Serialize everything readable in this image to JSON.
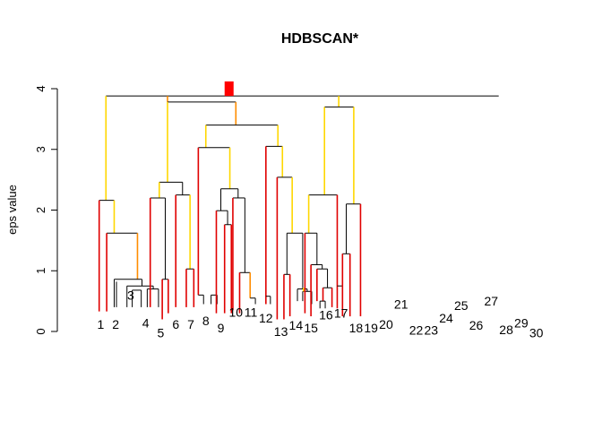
{
  "chart_data": {
    "type": "dendrogram",
    "title": "HDBSCAN*",
    "ylabel": "eps value",
    "ylim": [
      0,
      4.15
    ],
    "yticks": [
      0,
      1,
      2,
      3,
      4
    ],
    "ytick_labels": [
      "0",
      "1",
      "2",
      "3",
      "4"
    ],
    "colors": {
      "tree": "#000000",
      "red": "#e00000",
      "orange": "#ff8c00",
      "yellow": "#ffd700",
      "bright_red": "#ff0000"
    },
    "leaf_labels": [
      {
        "text": "1",
        "x": 1,
        "y_label": 0.12
      },
      {
        "text": "2",
        "x": 2,
        "y_label": 0.12
      },
      {
        "text": "3",
        "x": 3,
        "y_label": 0.6
      },
      {
        "text": "4",
        "x": 4,
        "y_label": 0.14
      },
      {
        "text": "5",
        "x": 5,
        "y_label": -0.02
      },
      {
        "text": "6",
        "x": 6,
        "y_label": 0.12
      },
      {
        "text": "7",
        "x": 7,
        "y_label": 0.12
      },
      {
        "text": "8",
        "x": 8,
        "y_label": 0.18
      },
      {
        "text": "9",
        "x": 9,
        "y_label": 0.06
      },
      {
        "text": "10",
        "x": 10,
        "y_label": 0.32
      },
      {
        "text": "11",
        "x": 11,
        "y_label": 0.32
      },
      {
        "text": "12",
        "x": 12,
        "y_label": 0.22
      },
      {
        "text": "13",
        "x": 13,
        "y_label": 0.0
      },
      {
        "text": "14",
        "x": 14,
        "y_label": 0.1
      },
      {
        "text": "15",
        "x": 15,
        "y_label": 0.06
      },
      {
        "text": "16",
        "x": 16,
        "y_label": 0.27
      },
      {
        "text": "17",
        "x": 17,
        "y_label": 0.3
      },
      {
        "text": "18",
        "x": 18,
        "y_label": 0.06
      },
      {
        "text": "19",
        "x": 19,
        "y_label": 0.06
      },
      {
        "text": "20",
        "x": 20,
        "y_label": 0.12
      },
      {
        "text": "21",
        "x": 21,
        "y_label": 0.45
      },
      {
        "text": "22",
        "x": 22,
        "y_label": 0.02
      },
      {
        "text": "23",
        "x": 23,
        "y_label": 0.02
      },
      {
        "text": "24",
        "x": 24,
        "y_label": 0.22
      },
      {
        "text": "25",
        "x": 25,
        "y_label": 0.43
      },
      {
        "text": "26",
        "x": 26,
        "y_label": 0.1
      },
      {
        "text": "27",
        "x": 27,
        "y_label": 0.5
      },
      {
        "text": "28",
        "x": 28,
        "y_label": 0.03
      },
      {
        "text": "29",
        "x": 29,
        "y_label": 0.14
      },
      {
        "text": "30",
        "x": 30,
        "y_label": -0.02
      }
    ],
    "segments": [
      {
        "x1": 1.35,
        "y1": 3.88,
        "x2": 27.5,
        "y2": 3.88,
        "color": "tree"
      },
      {
        "x1": 1.35,
        "y1": 3.88,
        "x2": 1.35,
        "y2": 2.16,
        "color": "yellow"
      },
      {
        "x1": 0.9,
        "y1": 2.16,
        "x2": 1.9,
        "y2": 2.16,
        "color": "tree"
      },
      {
        "x1": 0.9,
        "y1": 2.16,
        "x2": 0.9,
        "y2": 0.33,
        "color": "red"
      },
      {
        "x1": 1.9,
        "y1": 2.16,
        "x2": 1.9,
        "y2": 1.62,
        "color": "yellow"
      },
      {
        "x1": 1.4,
        "y1": 1.62,
        "x2": 3.45,
        "y2": 1.62,
        "color": "tree"
      },
      {
        "x1": 1.4,
        "y1": 1.62,
        "x2": 1.4,
        "y2": 0.33,
        "color": "red"
      },
      {
        "x1": 3.45,
        "y1": 1.62,
        "x2": 3.45,
        "y2": 0.86,
        "color": "orange"
      },
      {
        "x1": 1.9,
        "y1": 0.86,
        "x2": 3.75,
        "y2": 0.86,
        "color": "tree"
      },
      {
        "x1": 1.9,
        "y1": 0.86,
        "x2": 1.9,
        "y2": 0.4,
        "color": "tree"
      },
      {
        "x1": 2.05,
        "y1": 0.82,
        "x2": 2.05,
        "y2": 0.4,
        "color": "tree"
      },
      {
        "x1": 3.75,
        "y1": 0.86,
        "x2": 3.75,
        "y2": 0.75,
        "color": "tree"
      },
      {
        "x1": 2.75,
        "y1": 0.75,
        "x2": 4.5,
        "y2": 0.75,
        "color": "tree"
      },
      {
        "x1": 2.75,
        "y1": 0.75,
        "x2": 2.75,
        "y2": 0.4,
        "color": "tree"
      },
      {
        "x1": 3.1,
        "y1": 0.68,
        "x2": 3.7,
        "y2": 0.68,
        "color": "tree"
      },
      {
        "x1": 3.1,
        "y1": 0.68,
        "x2": 3.1,
        "y2": 0.4,
        "color": "tree"
      },
      {
        "x1": 3.7,
        "y1": 0.68,
        "x2": 3.7,
        "y2": 0.4,
        "color": "tree"
      },
      {
        "x1": 4.5,
        "y1": 0.75,
        "x2": 4.5,
        "y2": 0.7,
        "color": "tree"
      },
      {
        "x1": 4.1,
        "y1": 0.7,
        "x2": 4.85,
        "y2": 0.7,
        "color": "tree"
      },
      {
        "x1": 4.1,
        "y1": 0.7,
        "x2": 4.1,
        "y2": 0.4,
        "color": "tree"
      },
      {
        "x1": 4.85,
        "y1": 0.7,
        "x2": 4.85,
        "y2": 0.4,
        "color": "tree"
      },
      {
        "x1": 5.45,
        "y1": 3.88,
        "x2": 5.45,
        "y2": 3.78,
        "color": "orange"
      },
      {
        "x1": 5.45,
        "y1": 3.78,
        "x2": 10.0,
        "y2": 3.78,
        "color": "tree"
      },
      {
        "x1": 10.0,
        "y1": 3.78,
        "x2": 10.0,
        "y2": 3.4,
        "color": "orange"
      },
      {
        "x1": 5.45,
        "y1": 3.78,
        "x2": 5.45,
        "y2": 2.46,
        "color": "yellow"
      },
      {
        "x1": 4.9,
        "y1": 2.46,
        "x2": 6.45,
        "y2": 2.46,
        "color": "tree"
      },
      {
        "x1": 4.9,
        "y1": 2.46,
        "x2": 4.9,
        "y2": 2.2,
        "color": "yellow"
      },
      {
        "x1": 4.3,
        "y1": 2.2,
        "x2": 5.3,
        "y2": 2.2,
        "color": "tree"
      },
      {
        "x1": 4.3,
        "y1": 2.2,
        "x2": 4.3,
        "y2": 0.4,
        "color": "red"
      },
      {
        "x1": 5.3,
        "y1": 2.2,
        "x2": 5.3,
        "y2": 0.86,
        "color": "tree"
      },
      {
        "x1": 5.1,
        "y1": 0.86,
        "x2": 5.5,
        "y2": 0.86,
        "color": "tree"
      },
      {
        "x1": 5.1,
        "y1": 0.86,
        "x2": 5.1,
        "y2": 0.2,
        "color": "red"
      },
      {
        "x1": 5.5,
        "y1": 0.86,
        "x2": 5.5,
        "y2": 0.3,
        "color": "red"
      },
      {
        "x1": 6.45,
        "y1": 2.46,
        "x2": 6.45,
        "y2": 2.25,
        "color": "tree"
      },
      {
        "x1": 6.0,
        "y1": 2.25,
        "x2": 6.95,
        "y2": 2.25,
        "color": "tree"
      },
      {
        "x1": 6.0,
        "y1": 2.25,
        "x2": 6.0,
        "y2": 0.4,
        "color": "red"
      },
      {
        "x1": 6.95,
        "y1": 2.25,
        "x2": 6.95,
        "y2": 1.03,
        "color": "yellow"
      },
      {
        "x1": 6.7,
        "y1": 1.03,
        "x2": 7.2,
        "y2": 1.03,
        "color": "tree"
      },
      {
        "x1": 6.7,
        "y1": 1.03,
        "x2": 6.7,
        "y2": 0.4,
        "color": "red"
      },
      {
        "x1": 7.2,
        "y1": 1.03,
        "x2": 7.2,
        "y2": 0.4,
        "color": "red"
      },
      {
        "x1": 8.0,
        "y1": 3.4,
        "x2": 12.8,
        "y2": 3.4,
        "color": "tree"
      },
      {
        "x1": 8.0,
        "y1": 3.4,
        "x2": 8.0,
        "y2": 3.03,
        "color": "yellow"
      },
      {
        "x1": 7.5,
        "y1": 3.03,
        "x2": 9.6,
        "y2": 3.03,
        "color": "tree"
      },
      {
        "x1": 7.5,
        "y1": 3.03,
        "x2": 7.5,
        "y2": 0.6,
        "color": "red"
      },
      {
        "x1": 7.5,
        "y1": 0.6,
        "x2": 7.85,
        "y2": 0.6,
        "color": "tree"
      },
      {
        "x1": 7.85,
        "y1": 0.6,
        "x2": 7.85,
        "y2": 0.45,
        "color": "tree"
      },
      {
        "x1": 8.35,
        "y1": 0.6,
        "x2": 8.75,
        "y2": 0.6,
        "color": "tree"
      },
      {
        "x1": 8.35,
        "y1": 0.6,
        "x2": 8.35,
        "y2": 0.45,
        "color": "tree"
      },
      {
        "x1": 8.75,
        "y1": 0.6,
        "x2": 8.75,
        "y2": 0.45,
        "color": "tree"
      },
      {
        "x1": 9.6,
        "y1": 3.03,
        "x2": 9.6,
        "y2": 2.35,
        "color": "yellow"
      },
      {
        "x1": 9.0,
        "y1": 2.35,
        "x2": 10.15,
        "y2": 2.35,
        "color": "tree"
      },
      {
        "x1": 9.0,
        "y1": 2.35,
        "x2": 9.0,
        "y2": 1.99,
        "color": "tree"
      },
      {
        "x1": 8.7,
        "y1": 1.99,
        "x2": 9.45,
        "y2": 1.99,
        "color": "tree"
      },
      {
        "x1": 8.7,
        "y1": 1.99,
        "x2": 8.7,
        "y2": 0.3,
        "color": "red"
      },
      {
        "x1": 9.45,
        "y1": 1.99,
        "x2": 9.45,
        "y2": 1.76,
        "color": "tree"
      },
      {
        "x1": 9.25,
        "y1": 1.76,
        "x2": 9.7,
        "y2": 1.76,
        "color": "tree"
      },
      {
        "x1": 9.25,
        "y1": 1.76,
        "x2": 9.25,
        "y2": 0.3,
        "color": "red"
      },
      {
        "x1": 9.7,
        "y1": 1.76,
        "x2": 9.7,
        "y2": 0.3,
        "color": "red"
      },
      {
        "x1": 10.15,
        "y1": 2.35,
        "x2": 10.15,
        "y2": 2.2,
        "color": "tree"
      },
      {
        "x1": 9.8,
        "y1": 2.2,
        "x2": 10.6,
        "y2": 2.2,
        "color": "tree"
      },
      {
        "x1": 9.8,
        "y1": 2.2,
        "x2": 9.8,
        "y2": 0.35,
        "color": "red"
      },
      {
        "x1": 10.6,
        "y1": 2.2,
        "x2": 10.6,
        "y2": 0.97,
        "color": "tree"
      },
      {
        "x1": 10.25,
        "y1": 0.97,
        "x2": 10.95,
        "y2": 0.97,
        "color": "tree"
      },
      {
        "x1": 10.25,
        "y1": 0.97,
        "x2": 10.25,
        "y2": 0.3,
        "color": "red"
      },
      {
        "x1": 10.95,
        "y1": 0.97,
        "x2": 10.95,
        "y2": 0.55,
        "color": "orange"
      },
      {
        "x1": 10.95,
        "y1": 0.55,
        "x2": 11.3,
        "y2": 0.55,
        "color": "tree"
      },
      {
        "x1": 11.3,
        "y1": 0.55,
        "x2": 11.3,
        "y2": 0.45,
        "color": "tree"
      },
      {
        "x1": 12.8,
        "y1": 3.4,
        "x2": 12.8,
        "y2": 3.05,
        "color": "yellow"
      },
      {
        "x1": 12.0,
        "y1": 3.05,
        "x2": 13.1,
        "y2": 3.05,
        "color": "tree"
      },
      {
        "x1": 12.0,
        "y1": 3.05,
        "x2": 12.0,
        "y2": 0.45,
        "color": "red"
      },
      {
        "x1": 12.0,
        "y1": 0.58,
        "x2": 12.3,
        "y2": 0.58,
        "color": "tree"
      },
      {
        "x1": 12.3,
        "y1": 0.58,
        "x2": 12.3,
        "y2": 0.45,
        "color": "tree"
      },
      {
        "x1": 13.1,
        "y1": 3.05,
        "x2": 13.1,
        "y2": 2.54,
        "color": "yellow"
      },
      {
        "x1": 12.75,
        "y1": 2.54,
        "x2": 13.75,
        "y2": 2.54,
        "color": "tree"
      },
      {
        "x1": 12.75,
        "y1": 2.54,
        "x2": 12.75,
        "y2": 0.2,
        "color": "red"
      },
      {
        "x1": 13.75,
        "y1": 2.54,
        "x2": 13.75,
        "y2": 1.62,
        "color": "yellow"
      },
      {
        "x1": 13.4,
        "y1": 1.62,
        "x2": 14.45,
        "y2": 1.62,
        "color": "tree"
      },
      {
        "x1": 13.4,
        "y1": 1.62,
        "x2": 13.4,
        "y2": 0.94,
        "color": "tree"
      },
      {
        "x1": 13.2,
        "y1": 0.94,
        "x2": 13.6,
        "y2": 0.94,
        "color": "tree"
      },
      {
        "x1": 13.2,
        "y1": 0.94,
        "x2": 13.2,
        "y2": 0.2,
        "color": "red"
      },
      {
        "x1": 13.6,
        "y1": 0.94,
        "x2": 13.6,
        "y2": 0.25,
        "color": "red"
      },
      {
        "x1": 14.45,
        "y1": 1.62,
        "x2": 14.45,
        "y2": 0.7,
        "color": "tree"
      },
      {
        "x1": 14.1,
        "y1": 0.7,
        "x2": 14.75,
        "y2": 0.7,
        "color": "tree"
      },
      {
        "x1": 14.1,
        "y1": 0.7,
        "x2": 14.1,
        "y2": 0.5,
        "color": "tree"
      },
      {
        "x1": 14.75,
        "y1": 0.7,
        "x2": 14.75,
        "y2": 0.66,
        "color": "tree"
      },
      {
        "x1": 14.45,
        "y1": 0.66,
        "x2": 15.05,
        "y2": 0.66,
        "color": "tree"
      },
      {
        "x1": 14.45,
        "y1": 0.66,
        "x2": 14.45,
        "y2": 0.5,
        "color": "tree"
      },
      {
        "x1": 15.05,
        "y1": 0.66,
        "x2": 15.05,
        "y2": 0.45,
        "color": "tree"
      },
      {
        "x1": 14.5,
        "y1": 0.72,
        "x2": 14.5,
        "y2": 0.66,
        "color": "yellow"
      },
      {
        "x1": 16.85,
        "y1": 3.88,
        "x2": 16.85,
        "y2": 3.7,
        "color": "yellow"
      },
      {
        "x1": 15.9,
        "y1": 3.7,
        "x2": 17.85,
        "y2": 3.7,
        "color": "tree"
      },
      {
        "x1": 15.9,
        "y1": 3.7,
        "x2": 15.9,
        "y2": 2.25,
        "color": "yellow"
      },
      {
        "x1": 14.85,
        "y1": 2.25,
        "x2": 16.75,
        "y2": 2.25,
        "color": "tree"
      },
      {
        "x1": 14.85,
        "y1": 2.25,
        "x2": 14.85,
        "y2": 1.62,
        "color": "yellow"
      },
      {
        "x1": 14.6,
        "y1": 1.62,
        "x2": 15.4,
        "y2": 1.62,
        "color": "tree"
      },
      {
        "x1": 14.6,
        "y1": 1.62,
        "x2": 14.6,
        "y2": 0.3,
        "color": "red"
      },
      {
        "x1": 15.4,
        "y1": 1.62,
        "x2": 15.4,
        "y2": 1.1,
        "color": "tree"
      },
      {
        "x1": 15.0,
        "y1": 1.1,
        "x2": 15.75,
        "y2": 1.1,
        "color": "tree"
      },
      {
        "x1": 15.0,
        "y1": 1.1,
        "x2": 15.0,
        "y2": 0.25,
        "color": "red"
      },
      {
        "x1": 15.75,
        "y1": 1.1,
        "x2": 15.75,
        "y2": 1.03,
        "color": "tree"
      },
      {
        "x1": 15.4,
        "y1": 1.03,
        "x2": 16.1,
        "y2": 1.03,
        "color": "tree"
      },
      {
        "x1": 15.4,
        "y1": 1.03,
        "x2": 15.4,
        "y2": 0.5,
        "color": "red"
      },
      {
        "x1": 16.1,
        "y1": 1.03,
        "x2": 16.1,
        "y2": 0.72,
        "color": "tree"
      },
      {
        "x1": 15.8,
        "y1": 0.72,
        "x2": 16.4,
        "y2": 0.72,
        "color": "tree"
      },
      {
        "x1": 15.8,
        "y1": 0.72,
        "x2": 15.8,
        "y2": 0.5,
        "color": "red"
      },
      {
        "x1": 16.4,
        "y1": 0.72,
        "x2": 16.4,
        "y2": 0.4,
        "color": "red"
      },
      {
        "x1": 15.6,
        "y1": 0.5,
        "x2": 15.95,
        "y2": 0.5,
        "color": "tree"
      },
      {
        "x1": 15.6,
        "y1": 0.5,
        "x2": 15.6,
        "y2": 0.38,
        "color": "tree"
      },
      {
        "x1": 15.95,
        "y1": 0.5,
        "x2": 15.95,
        "y2": 0.38,
        "color": "tree"
      },
      {
        "x1": 16.75,
        "y1": 2.25,
        "x2": 16.75,
        "y2": 0.38,
        "color": "red"
      },
      {
        "x1": 16.75,
        "y1": 0.75,
        "x2": 17.1,
        "y2": 0.75,
        "color": "tree"
      },
      {
        "x1": 17.1,
        "y1": 0.75,
        "x2": 17.1,
        "y2": 0.38,
        "color": "tree"
      },
      {
        "x1": 17.85,
        "y1": 3.7,
        "x2": 17.85,
        "y2": 2.1,
        "color": "yellow"
      },
      {
        "x1": 17.35,
        "y1": 2.1,
        "x2": 18.3,
        "y2": 2.1,
        "color": "tree"
      },
      {
        "x1": 17.35,
        "y1": 2.1,
        "x2": 17.35,
        "y2": 1.28,
        "color": "tree"
      },
      {
        "x1": 17.1,
        "y1": 1.28,
        "x2": 17.6,
        "y2": 1.28,
        "color": "tree"
      },
      {
        "x1": 17.1,
        "y1": 1.28,
        "x2": 17.1,
        "y2": 0.25,
        "color": "red"
      },
      {
        "x1": 17.6,
        "y1": 1.28,
        "x2": 17.6,
        "y2": 0.25,
        "color": "red"
      },
      {
        "x1": 18.3,
        "y1": 2.1,
        "x2": 18.3,
        "y2": 0.25,
        "color": "red"
      }
    ],
    "markers": [
      {
        "x": 9.55,
        "y1": 3.88,
        "y2": 4.12,
        "color": "bright_red"
      }
    ]
  }
}
